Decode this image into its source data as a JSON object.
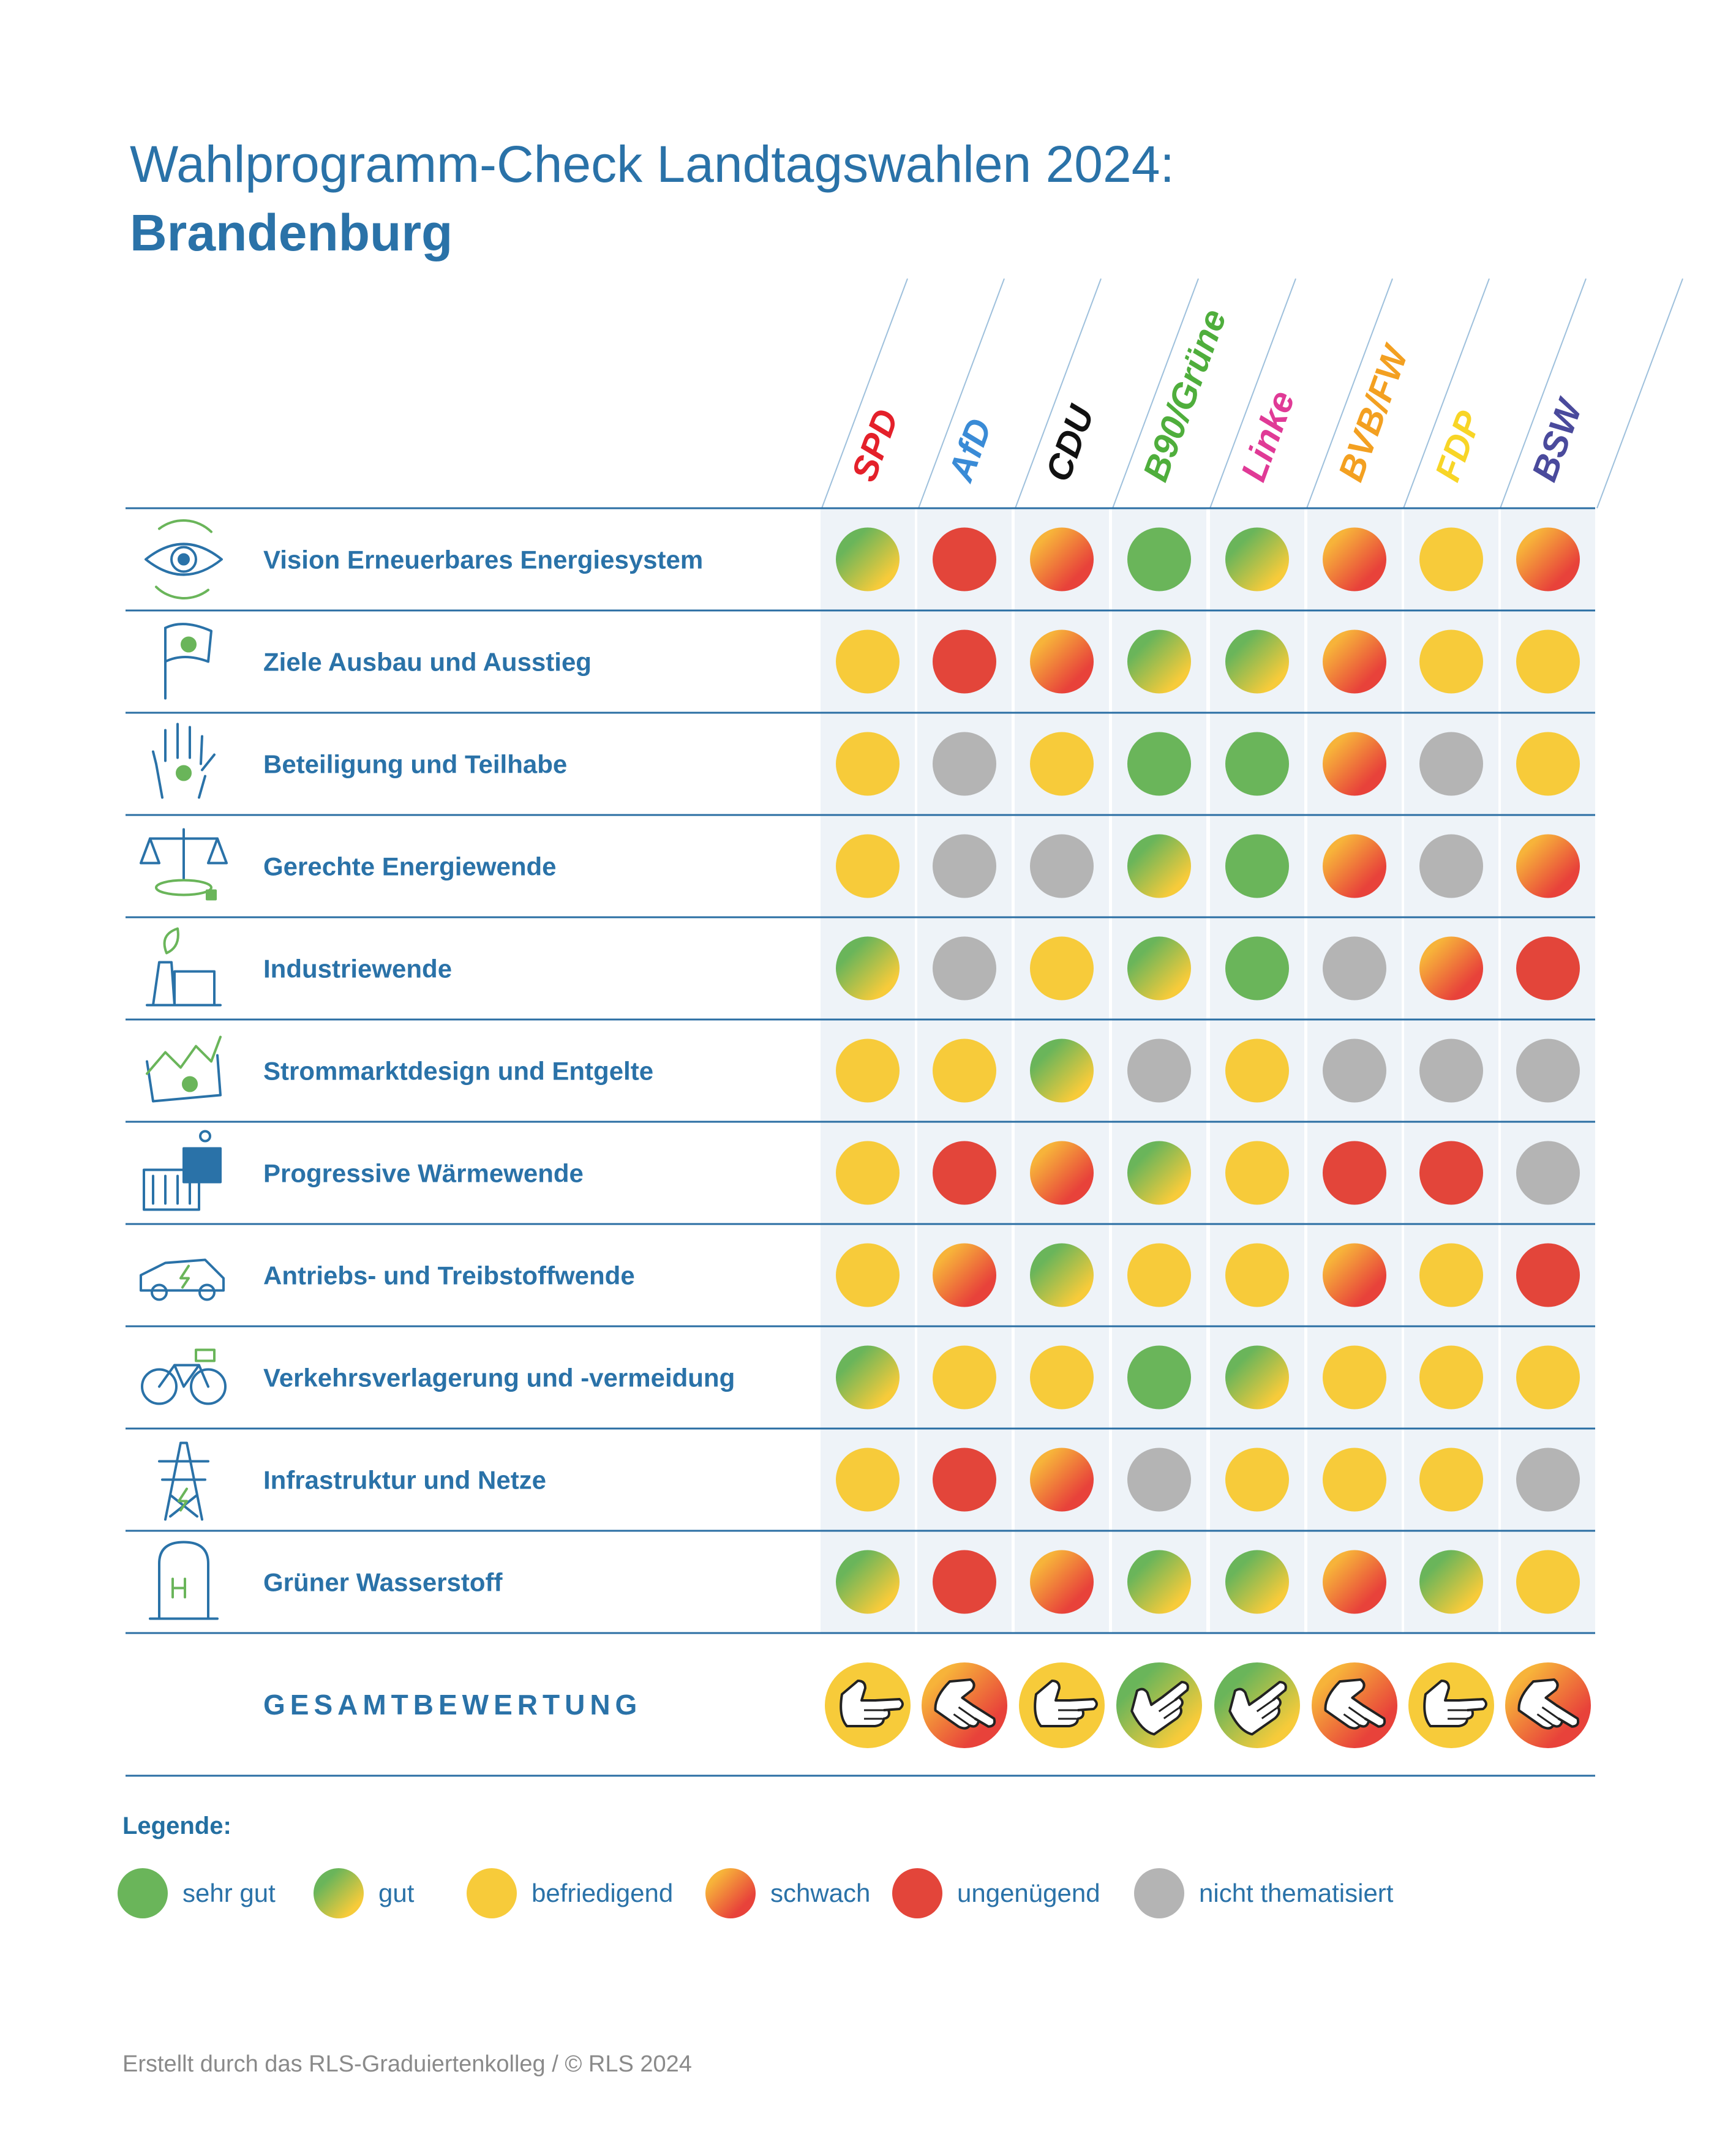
{
  "title_line1": "Wahlprogramm-Check Landtagswahlen 2024:",
  "title_line2": "Brandenburg",
  "colors": {
    "sehr_gut": "#6ab55a",
    "gut_start": "#6ab55a",
    "gut_end": "#f7cb3a",
    "befriedigend": "#f7cb3a",
    "schwach_start": "#f7b33a",
    "schwach_end": "#e8423a",
    "ungenuegend": "#e3453a",
    "nicht_thematisiert": "#b4b4b4",
    "text": "#2a72a8",
    "band": "#eef3f8",
    "rule": "#2a6ea3"
  },
  "chart_data": {
    "type": "table",
    "parties": [
      {
        "name": "SPD",
        "color": "#e4202a"
      },
      {
        "name": "AfD",
        "color": "#3a8bd6"
      },
      {
        "name": "CDU",
        "color": "#111111"
      },
      {
        "name": "B90/Grüne",
        "color": "#4fae3c"
      },
      {
        "name": "Linke",
        "color": "#e03a96"
      },
      {
        "name": "BVB/FW",
        "color": "#f3a021"
      },
      {
        "name": "FDP",
        "color": "#f8d526"
      },
      {
        "name": "BSW",
        "color": "#4a4a9c"
      }
    ],
    "rating_scale": [
      "sehr gut",
      "gut",
      "befriedigend",
      "schwach",
      "ungenügend",
      "nicht thematisiert"
    ],
    "topics": [
      {
        "label": "Vision Erneuerbares Energiesystem",
        "icon": "eye-cycle-icon",
        "ratings": [
          "gut",
          "ungenügend",
          "schwach",
          "sehr gut",
          "gut",
          "schwach",
          "befriedigend",
          "schwach"
        ]
      },
      {
        "label": "Ziele Ausbau und Ausstieg",
        "icon": "flag-plug-icon",
        "ratings": [
          "befriedigend",
          "ungenügend",
          "schwach",
          "gut",
          "gut",
          "schwach",
          "befriedigend",
          "befriedigend"
        ]
      },
      {
        "label": "Beteiligung und Teilhabe",
        "icon": "hand-plug-icon",
        "ratings": [
          "befriedigend",
          "nicht thematisiert",
          "befriedigend",
          "sehr gut",
          "sehr gut",
          "schwach",
          "nicht thematisiert",
          "befriedigend"
        ]
      },
      {
        "label": "Gerechte Energiewende",
        "icon": "scales-icon",
        "ratings": [
          "befriedigend",
          "nicht thematisiert",
          "nicht thematisiert",
          "gut",
          "sehr gut",
          "schwach",
          "nicht thematisiert",
          "schwach"
        ]
      },
      {
        "label": "Industriewende",
        "icon": "factory-leaf-icon",
        "ratings": [
          "gut",
          "nicht thematisiert",
          "befriedigend",
          "gut",
          "sehr gut",
          "nicht thematisiert",
          "schwach",
          "ungenügend"
        ]
      },
      {
        "label": "Strommarktdesign und Entgelte",
        "icon": "market-chart-icon",
        "ratings": [
          "befriedigend",
          "befriedigend",
          "gut",
          "nicht thematisiert",
          "befriedigend",
          "nicht thematisiert",
          "nicht thematisiert",
          "nicht thematisiert"
        ]
      },
      {
        "label": "Progressive Wärmewende",
        "icon": "solar-heater-icon",
        "ratings": [
          "befriedigend",
          "ungenügend",
          "schwach",
          "gut",
          "befriedigend",
          "ungenügend",
          "ungenügend",
          "nicht thematisiert"
        ]
      },
      {
        "label": "Antriebs- und Treibstoffwende",
        "icon": "electric-car-icon",
        "ratings": [
          "befriedigend",
          "schwach",
          "gut",
          "befriedigend",
          "befriedigend",
          "schwach",
          "befriedigend",
          "ungenügend"
        ]
      },
      {
        "label": "Verkehrsverlagerung und -vermeidung",
        "icon": "bicycle-icon",
        "ratings": [
          "gut",
          "befriedigend",
          "befriedigend",
          "sehr gut",
          "gut",
          "befriedigend",
          "befriedigend",
          "befriedigend"
        ]
      },
      {
        "label": "Infrastruktur und Netze",
        "icon": "power-pylon-icon",
        "ratings": [
          "befriedigend",
          "ungenügend",
          "schwach",
          "nicht thematisiert",
          "befriedigend",
          "befriedigend",
          "befriedigend",
          "nicht thematisiert"
        ]
      },
      {
        "label": "Grüner Wasserstoff",
        "icon": "hydrogen-tank-icon",
        "ratings": [
          "gut",
          "ungenügend",
          "schwach",
          "gut",
          "gut",
          "schwach",
          "gut",
          "befriedigend"
        ]
      }
    ],
    "overall": {
      "label": "GESAMTBEWERTUNG",
      "ratings": [
        {
          "rating": "befriedigend",
          "thumb": "sideways"
        },
        {
          "rating": "schwach",
          "thumb": "down"
        },
        {
          "rating": "befriedigend",
          "thumb": "sideways"
        },
        {
          "rating": "gut",
          "thumb": "up"
        },
        {
          "rating": "gut",
          "thumb": "up"
        },
        {
          "rating": "schwach",
          "thumb": "down"
        },
        {
          "rating": "befriedigend",
          "thumb": "sideways"
        },
        {
          "rating": "schwach",
          "thumb": "down"
        }
      ]
    }
  },
  "legend": {
    "title": "Legende:",
    "items": [
      {
        "key": "sehr gut",
        "label": "sehr gut"
      },
      {
        "key": "gut",
        "label": "gut"
      },
      {
        "key": "befriedigend",
        "label": "befriedigend"
      },
      {
        "key": "schwach",
        "label": "schwach"
      },
      {
        "key": "ungenügend",
        "label": "ungenügend"
      },
      {
        "key": "nicht thematisiert",
        "label": "nicht thematisiert"
      }
    ]
  },
  "credit": "Erstellt durch das RLS-Graduiertenkolleg / © RLS 2024"
}
